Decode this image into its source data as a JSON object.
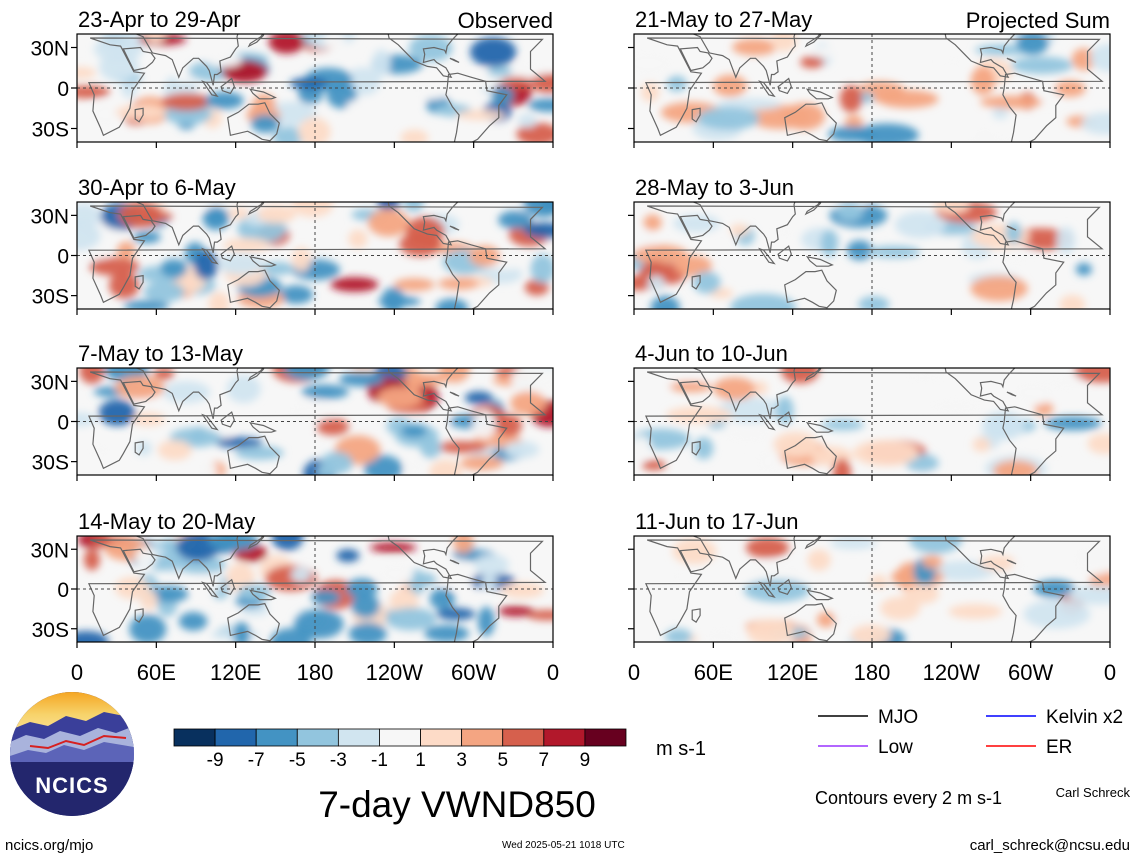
{
  "figure": {
    "title": "7-day VWND850",
    "left_column_label": "Observed",
    "right_column_label": "Projected Sum",
    "timestamp": "Wed 2025-05-21 1018 UTC",
    "source_url": "ncics.org/mjo",
    "author": "Carl Schreck",
    "email": "carl_schreck@ncsu.edu",
    "contours_note": "Contours every 2 m s-1",
    "logo_text": "NCICS"
  },
  "chart_data": [
    {
      "type": "heatmap",
      "field": "850-hPa meridional wind anomaly",
      "unit": "m s-1",
      "xlabel": "",
      "ylabel": "",
      "x_tick_labels": [
        "0",
        "60E",
        "120E",
        "180",
        "120W",
        "60W",
        "0"
      ],
      "y_tick_labels": [
        "30N",
        "0",
        "30S"
      ],
      "colorbar": {
        "tick_labels": [
          "-9",
          "-7",
          "-5",
          "-3",
          "-1",
          "1",
          "3",
          "5",
          "7",
          "9"
        ],
        "colors": [
          "#08305e",
          "#2166ac",
          "#4393c3",
          "#92c5de",
          "#d1e5f0",
          "#f7f7f7",
          "#fddbc7",
          "#f4a582",
          "#d6604d",
          "#b2182b",
          "#67001f"
        ]
      },
      "legend": [
        {
          "label": "MJO",
          "color": "#000000"
        },
        {
          "label": "Kelvin x2",
          "color": "#0000ff"
        },
        {
          "label": "Low",
          "color": "#9933ff"
        },
        {
          "label": "ER",
          "color": "#ff0000"
        }
      ],
      "panels": [
        {
          "label": "23-Apr to 29-Apr",
          "column": "Observed"
        },
        {
          "label": "30-Apr to 6-May",
          "column": "Observed"
        },
        {
          "label": "7-May to 13-May",
          "column": "Observed"
        },
        {
          "label": "14-May to 20-May",
          "column": "Observed"
        },
        {
          "label": "21-May to 27-May",
          "column": "Projected Sum"
        },
        {
          "label": "28-May to 3-Jun",
          "column": "Projected Sum"
        },
        {
          "label": "4-Jun to 10-Jun",
          "column": "Projected Sum"
        },
        {
          "label": "11-Jun to 17-Jun",
          "column": "Projected Sum"
        }
      ]
    }
  ]
}
